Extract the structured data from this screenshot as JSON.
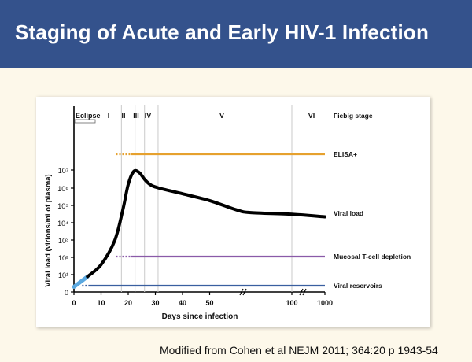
{
  "slide": {
    "title": "Staging of Acute and Early HIV-1 Infection",
    "caption": "Modified from Cohen et al NEJM 2011; 364:20 p 1943-54",
    "colors": {
      "header_bg": "#34528c",
      "slide_bg": "#fdf8ea",
      "elisa": "#e6a12e",
      "mucosal": "#8a5aa8",
      "reservoirs": "#3a5fa0",
      "viral_load": "#000000",
      "early_segment": "#5aa8e0"
    }
  },
  "chart_data": {
    "type": "line",
    "xlabel": "Days since infection",
    "ylabel": "Viral load (virions/ml of plasma)",
    "x_ticks": [
      "0",
      "10",
      "20",
      "30",
      "40",
      "50",
      "100",
      "1000"
    ],
    "y_ticks": [
      "0",
      "10¹",
      "10²",
      "10³",
      "10⁴",
      "10⁵",
      "10⁶",
      "10⁷"
    ],
    "fiebig_header": "Fiebig stage",
    "eclipse_label": "Eclipse",
    "stages": [
      "I",
      "II",
      "III",
      "IV",
      "V",
      "VI"
    ],
    "stage_boundaries_days": [
      17.5,
      22.5,
      26,
      31,
      100
    ],
    "viral_load_series": {
      "name": "Viral load",
      "x": [
        0,
        5,
        10,
        15,
        18,
        20,
        22,
        24,
        26,
        28,
        31,
        40,
        50,
        60,
        70,
        100,
        1000
      ],
      "y_log10": [
        0.3,
        0.9,
        1.6,
        3.0,
        4.8,
        6.3,
        7.05,
        7.0,
        6.6,
        6.3,
        6.1,
        5.75,
        5.35,
        4.8,
        4.65,
        4.55,
        4.4
      ]
    },
    "markers": [
      {
        "name": "ELISA+",
        "start_day": 15.5,
        "solid_from_day": 21,
        "color": "#e6a12e"
      },
      {
        "name": "Mucosal T-cell depletion",
        "start_day": 15.5,
        "solid_from_day": 21,
        "color": "#8a5aa8"
      },
      {
        "name": "Viral reservoirs",
        "start_day": 3,
        "solid_from_day": 6,
        "color": "#3a5fa0"
      }
    ]
  }
}
